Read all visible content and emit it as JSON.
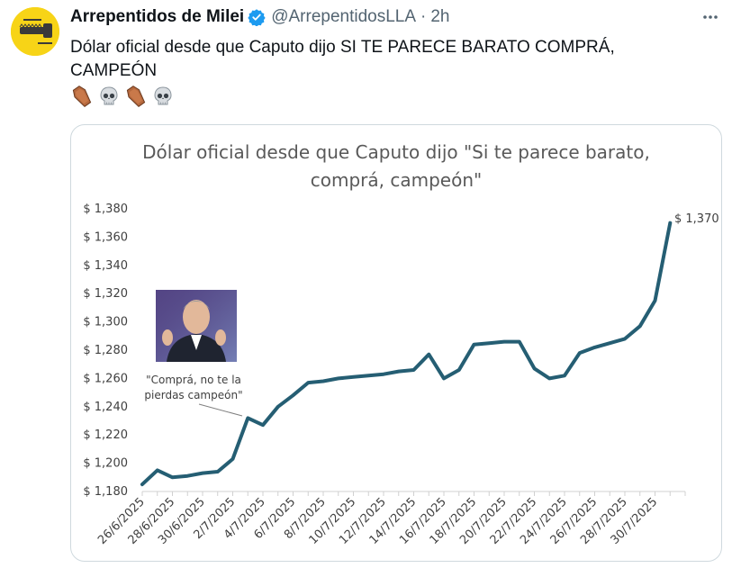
{
  "tweet": {
    "display_name": "Arrepentidos de Milei",
    "handle": "@ArrepentidosLLA",
    "separator": "·",
    "time": "2h",
    "text": "Dólar oficial desde que Caputo dijo SI TE PARECE BARATO COMPRÁ, CAMPEÓN",
    "emojis": [
      "coffin-icon",
      "skull-icon",
      "coffin-icon",
      "skull-icon"
    ],
    "verified": true,
    "avatar_icon": "chainsaw-logo-icon",
    "more_icon": "more-dots-icon"
  },
  "colors": {
    "line": "#255e73",
    "avatar_bg": "#f7d417",
    "verified": "#1d9bf0"
  },
  "chart_data": {
    "type": "line",
    "title": "Dólar oficial desde que Caputo dijo \"Si te parece barato, comprá, campeón\"",
    "title_lines": [
      "Dólar oficial desde que Caputo dijo \"Si te parece barato,",
      "comprá, campeón\""
    ],
    "xlabel": "",
    "ylabel": "",
    "ylim": [
      1180,
      1380
    ],
    "y_ticks": [
      1180,
      1200,
      1220,
      1240,
      1260,
      1280,
      1300,
      1320,
      1340,
      1360,
      1380
    ],
    "y_tick_labels": [
      "$ 1,180",
      "$ 1,200",
      "$ 1,220",
      "$ 1,240",
      "$ 1,260",
      "$ 1,280",
      "$ 1,300",
      "$ 1,320",
      "$ 1,340",
      "$ 1,360",
      "$ 1,380"
    ],
    "x_tick_labels": [
      "26/6/2025",
      "28/6/2025",
      "30/6/2025",
      "2/7/2025",
      "4/7/2025",
      "6/7/2025",
      "8/7/2025",
      "10/7/2025",
      "12/7/2025",
      "14/7/2025",
      "16/7/2025",
      "18/7/2025",
      "20/7/2025",
      "22/7/2025",
      "24/7/2025",
      "26/7/2025",
      "28/7/2025",
      "30/7/2025"
    ],
    "x": [
      "26/6/2025",
      "27/6/2025",
      "28/6/2025",
      "29/6/2025",
      "30/6/2025",
      "1/7/2025",
      "2/7/2025",
      "3/7/2025",
      "4/7/2025",
      "5/7/2025",
      "6/7/2025",
      "7/7/2025",
      "8/7/2025",
      "9/7/2025",
      "10/7/2025",
      "11/7/2025",
      "12/7/2025",
      "13/7/2025",
      "14/7/2025",
      "15/7/2025",
      "16/7/2025",
      "17/7/2025",
      "18/7/2025",
      "19/7/2025",
      "20/7/2025",
      "21/7/2025",
      "22/7/2025",
      "23/7/2025",
      "24/7/2025",
      "25/7/2025",
      "26/7/2025",
      "27/7/2025",
      "28/7/2025",
      "29/7/2025",
      "30/7/2025",
      "31/7/2025"
    ],
    "values": [
      1185,
      1195,
      1190,
      1191,
      1193,
      1194,
      1203,
      1232,
      1227,
      1240,
      1248,
      1257,
      1258,
      1260,
      1261,
      1262,
      1263,
      1265,
      1266,
      1277,
      1260,
      1266,
      1284,
      1285,
      1286,
      1286,
      1267,
      1260,
      1262,
      1278,
      1282,
      1285,
      1288,
      1297,
      1315,
      1370
    ],
    "point_label": "$ 1,370",
    "annotation_lines": [
      "\"Comprá, no te la",
      "pierdas campeón\""
    ],
    "annotation_image_icon": "caputo-photo-icon",
    "grid": false,
    "legend": "none"
  }
}
